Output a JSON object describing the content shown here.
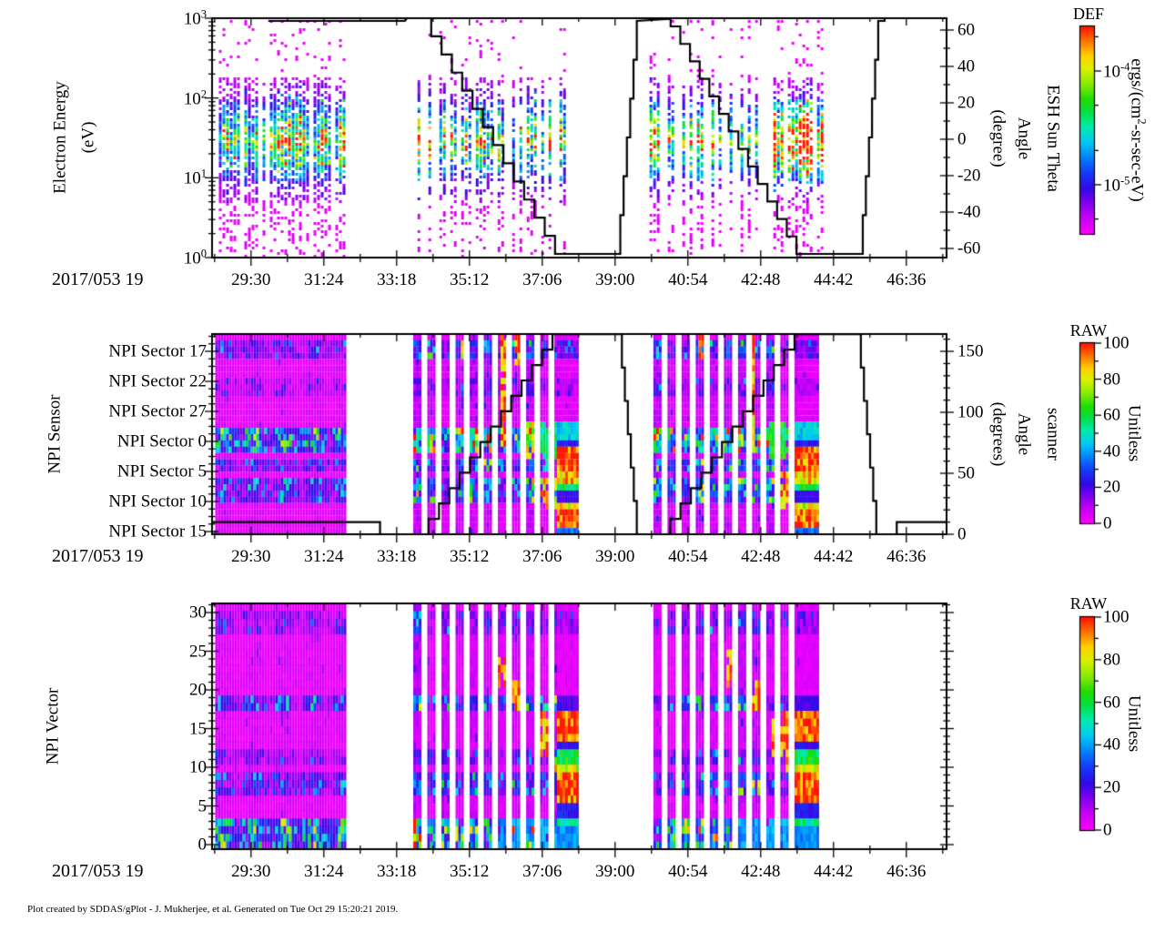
{
  "x_label": "2017/053 19",
  "footer": "Plot created by SDDAS/gPlot - J. Mukherjee, et al.  Generated on Tue Oct 29 15:20:21 2019.",
  "chart_data": [
    {
      "panel": "electron-energy-spectrogram",
      "type": "heatmap",
      "x_axis": {
        "label": "2017/053 19",
        "tick_labels": [
          "29:30",
          "31:24",
          "33:18",
          "35:12",
          "37:06",
          "39:00",
          "40:54",
          "42:48",
          "44:42",
          "46:36"
        ],
        "tick_seconds": [
          1770,
          1884,
          1998,
          2112,
          2226,
          2340,
          2454,
          2568,
          2682,
          2796
        ],
        "range_seconds": [
          1709,
          2859
        ],
        "minor_step_seconds": 57
      },
      "y_axis": {
        "title_lines": [
          "Electron Energy",
          "(eV)"
        ],
        "scale": "log10",
        "tick_base": "10",
        "tick_exponents": [
          "3",
          "2",
          "1",
          "0"
        ],
        "range_log10": [
          0,
          3
        ]
      },
      "right_axis": {
        "title_lines": [
          "ESH Sun Theta",
          "Angle",
          "(degree)"
        ],
        "tick_labels": [
          "60",
          "40",
          "20",
          "0",
          "-20",
          "-40",
          "-60"
        ],
        "tick_values": [
          60,
          40,
          20,
          0,
          -20,
          -40,
          -60
        ],
        "range": [
          -65,
          66.5
        ],
        "minor_step": 10
      },
      "colorbar": {
        "title": "DEF",
        "unit_parts": {
          "pre": "ergs/(cm",
          "sup": "2",
          "post": "-sr-sec-eV)"
        },
        "scale": "log10",
        "tick_labels": [
          {
            "base": "10",
            "exp": "-4"
          },
          {
            "base": "10",
            "exp": "-5"
          }
        ],
        "major_fracs": [
          0.215,
          0.763
        ],
        "minor_fracs": [
          0.05,
          0.38,
          0.598,
          0.928
        ]
      },
      "bursts": [
        {
          "t0": 1714,
          "t1": 1918,
          "density": 0.85
        },
        {
          "t0": 2025,
          "t1": 2282,
          "density": 0.55
        },
        {
          "t0": 2394,
          "t1": 2666,
          "density": 0.6,
          "hot_t0": 2570,
          "hot_t1": 2662
        }
      ],
      "line": {
        "name": "esh-sun-theta-angle-deg",
        "segments": [
          [
            1797,
            65,
            2011,
            65,
            0
          ],
          [
            2011,
            65,
            2014,
            66.5,
            0
          ],
          [
            2014,
            66.5,
            2036,
            66.5,
            0
          ],
          [
            2036,
            66.5,
            2246,
            -63,
            13
          ],
          [
            2246,
            -63,
            2343,
            -63,
            0
          ],
          [
            2343,
            -63,
            2374,
            65,
            6
          ],
          [
            2374,
            65,
            2420,
            66,
            0
          ],
          [
            2420,
            66,
            2427,
            62,
            1
          ],
          [
            2427,
            62,
            2624,
            -63,
            13
          ],
          [
            2624,
            -63,
            2723,
            -63,
            0
          ],
          [
            2723,
            -63,
            2752,
            65,
            6
          ],
          [
            2752,
            65,
            2762,
            66.5,
            1
          ],
          [
            2762,
            66.5,
            2859,
            66.5,
            0
          ]
        ]
      }
    },
    {
      "panel": "npi-sensor",
      "type": "heatmap",
      "y_axis": {
        "title": "NPI Sensor",
        "tick_labels": [
          "NPI Sector 17",
          "NPI Sector 22",
          "NPI Sector 27",
          "NPI Sector 0",
          "NPI Sector 5",
          "NPI Sector 10",
          "NPI Sector 15"
        ]
      },
      "right_axis": {
        "title_lines": [
          "scanner",
          "Angle",
          "(degrees)"
        ],
        "tick_labels": [
          "150",
          "100",
          "50",
          "0"
        ],
        "tick_values": [
          150,
          100,
          50,
          0
        ],
        "range": [
          0,
          164.2
        ],
        "minor_step": 10
      },
      "colorbar": {
        "title": "RAW",
        "unit": "Unitless",
        "tick_labels": [
          "100",
          "80",
          "60",
          "40",
          "20",
          "0"
        ],
        "tick_values": [
          100,
          80,
          60,
          40,
          20,
          0
        ],
        "range": [
          0,
          100
        ],
        "minor_step": 10
      },
      "bands": [
        {
          "rf": [
            0.02,
            0.14
          ],
          "base": 13,
          "speckle": 0.25
        },
        {
          "rf": [
            0.22,
            0.31
          ],
          "base": 8,
          "speckle": 0.15
        },
        {
          "rf": [
            0.46,
            0.6
          ],
          "base": 21,
          "speckle": 0.5
        },
        {
          "rf": [
            0.62,
            0.7
          ],
          "base": 13,
          "speckle": 0.3
        },
        {
          "rf": [
            0.72,
            0.83
          ],
          "base": 15,
          "speckle": 0.35
        }
      ],
      "base": {
        "base": 4,
        "speckle": 0.06
      },
      "regions": [
        {
          "t0": 1714,
          "t1": 1918,
          "style": "block",
          "mod": true
        },
        {
          "t0": 2024,
          "t1": 2249,
          "style": "stripes",
          "enh": [
            {
              "tf": [
                0.6,
                0.64
              ],
              "rf": [
                0.0,
                0.55
              ],
              "v": 96
            },
            {
              "tf": [
                0.7,
                0.76
              ],
              "rf": [
                0.0,
                0.15
              ],
              "v": 96
            },
            {
              "tf": [
                0.33,
                0.37
              ],
              "rf": [
                0.02,
                0.14
              ],
              "v": 88
            },
            {
              "tf": [
                0.76,
                0.86
              ],
              "rf": [
                0.44,
                0.62
              ],
              "v": 80
            },
            {
              "tf": [
                0.88,
                1.0
              ],
              "rf": [
                0.72,
                0.88
              ],
              "v": 90
            },
            {
              "tf": [
                0.86,
                1.0
              ],
              "rf": [
                0.44,
                0.62
              ],
              "v": 55
            }
          ]
        },
        {
          "t0": 2249,
          "t1": 2279,
          "style": "block",
          "rows": [
            {
              "rf": [
                0.44,
                0.52
              ],
              "v": 45
            },
            {
              "rf": [
                0.52,
                0.57
              ],
              "v": 25
            },
            {
              "rf": [
                0.57,
                0.7
              ],
              "v": 97
            },
            {
              "rf": [
                0.7,
                0.745
              ],
              "v": 85
            },
            {
              "rf": [
                0.745,
                0.79
              ],
              "v": 60
            },
            {
              "rf": [
                0.79,
                0.83
              ],
              "v": 22
            },
            {
              "rf": [
                0.83,
                0.87
              ],
              "v": 80
            },
            {
              "rf": [
                0.87,
                0.97
              ],
              "v": 97
            },
            {
              "rf": [
                0.97,
                1.0
              ],
              "v": 35
            }
          ]
        },
        {
          "t0": 2400,
          "t1": 2621,
          "style": "stripes",
          "enh": [
            {
              "tf": [
                0.3,
                0.36
              ],
              "rf": [
                0.0,
                0.14
              ],
              "v": 96
            },
            {
              "tf": [
                0.64,
                0.7
              ],
              "rf": [
                0.0,
                0.6
              ],
              "v": 93
            },
            {
              "tf": [
                0.55,
                0.62
              ],
              "rf": [
                0.44,
                0.62
              ],
              "v": 96
            },
            {
              "tf": [
                0.85,
                1.0
              ],
              "rf": [
                0.7,
                0.88
              ],
              "v": 92
            },
            {
              "tf": [
                0.8,
                1.0
              ],
              "rf": [
                0.44,
                0.62
              ],
              "v": 60
            }
          ]
        },
        {
          "t0": 2621,
          "t1": 2656,
          "style": "block",
          "rows": [
            {
              "rf": [
                0.44,
                0.52
              ],
              "v": 45
            },
            {
              "rf": [
                0.52,
                0.57
              ],
              "v": 25
            },
            {
              "rf": [
                0.57,
                0.7
              ],
              "v": 97
            },
            {
              "rf": [
                0.7,
                0.745
              ],
              "v": 85
            },
            {
              "rf": [
                0.745,
                0.79
              ],
              "v": 60
            },
            {
              "rf": [
                0.79,
                0.83
              ],
              "v": 22
            },
            {
              "rf": [
                0.83,
                0.87
              ],
              "v": 80
            },
            {
              "rf": [
                0.87,
                0.97
              ],
              "v": 97
            },
            {
              "rf": [
                0.97,
                1.0
              ],
              "v": 35
            }
          ]
        }
      ],
      "line": {
        "name": "scanner-angle-deg",
        "segments": [
          [
            1709,
            10,
            1968,
            10,
            0
          ],
          [
            1968,
            10,
            1972,
            0,
            1
          ],
          [
            1972,
            0,
            2032,
            0,
            0
          ],
          [
            2032,
            0,
            2242,
            164,
            13
          ],
          [
            2242,
            164,
            2346,
            164,
            0
          ],
          [
            2346,
            164,
            2374,
            0,
            6
          ],
          [
            2374,
            0,
            2410,
            0,
            0
          ],
          [
            2410,
            0,
            2621,
            164,
            13
          ],
          [
            2621,
            164,
            2720,
            164,
            0
          ],
          [
            2720,
            164,
            2749,
            0,
            6
          ],
          [
            2749,
            0,
            2779,
            0,
            0
          ],
          [
            2779,
            0,
            2781,
            10,
            1
          ],
          [
            2781,
            10,
            2859,
            10,
            0
          ]
        ]
      }
    },
    {
      "panel": "npi-vector",
      "type": "heatmap",
      "y_axis": {
        "title": "NPI Vector",
        "tick_labels": [
          "30",
          "25",
          "20",
          "15",
          "10",
          "5",
          "0"
        ],
        "tick_values": [
          30,
          25,
          20,
          15,
          10,
          5,
          0
        ],
        "range": [
          -0.6,
          31.2
        ],
        "minor_step": 1
      },
      "colorbar": {
        "title": "RAW",
        "unit": "Unitless",
        "tick_labels": [
          "100",
          "80",
          "60",
          "40",
          "20",
          "0"
        ],
        "tick_values": [
          100,
          80,
          60,
          40,
          20,
          0
        ],
        "range": [
          0,
          100
        ],
        "minor_step": 10
      },
      "bands": [
        {
          "rf": [
            0.03,
            0.14
          ],
          "base": 10,
          "speckle": 0.2
        },
        {
          "rf": [
            0.36,
            0.45
          ],
          "base": 15,
          "speckle": 0.35
        },
        {
          "rf": [
            0.58,
            0.66
          ],
          "base": 10,
          "speckle": 0.2
        },
        {
          "rf": [
            0.68,
            0.79
          ],
          "base": 13,
          "speckle": 0.3
        },
        {
          "rf": [
            0.87,
            1.0
          ],
          "base": 22,
          "speckle": 0.5
        }
      ],
      "base": {
        "base": 4,
        "speckle": 0.06
      },
      "regions": [
        {
          "t0": 1714,
          "t1": 1918,
          "style": "block",
          "mod": true
        },
        {
          "t0": 2024,
          "t1": 2249,
          "style": "stripes",
          "enh": [
            {
              "tf": [
                0.56,
                0.63
              ],
              "rf": [
                0.18,
                0.34
              ],
              "v": 96
            },
            {
              "tf": [
                0.66,
                0.73
              ],
              "rf": [
                0.3,
                0.43
              ],
              "v": 96
            },
            {
              "tf": [
                0.84,
                0.95
              ],
              "rf": [
                0.45,
                0.62
              ],
              "v": 94
            },
            {
              "tf": [
                0.93,
                1.0
              ],
              "rf": [
                0.6,
                0.7
              ],
              "v": 85
            },
            {
              "tf": [
                0.55,
                1.0
              ],
              "rf": [
                0.86,
                1.0
              ],
              "v": 40
            }
          ]
        },
        {
          "t0": 2249,
          "t1": 2279,
          "style": "block",
          "rows": [
            {
              "rf": [
                0.36,
                0.425
              ],
              "v": 20
            },
            {
              "rf": [
                0.425,
                0.555
              ],
              "v": 97
            },
            {
              "rf": [
                0.555,
                0.6
              ],
              "v": 22
            },
            {
              "rf": [
                0.6,
                0.655
              ],
              "v": 60
            },
            {
              "rf": [
                0.655,
                0.7
              ],
              "v": 82
            },
            {
              "rf": [
                0.7,
                0.82
              ],
              "v": 97
            },
            {
              "rf": [
                0.82,
                0.87
              ],
              "v": 25
            },
            {
              "rf": [
                0.87,
                0.92
              ],
              "v": 55
            },
            {
              "rf": [
                0.92,
                1.0
              ],
              "v": 38
            }
          ]
        },
        {
          "t0": 2400,
          "t1": 2621,
          "style": "stripes",
          "enh": [
            {
              "tf": [
                0.5,
                0.58
              ],
              "rf": [
                0.18,
                0.34
              ],
              "v": 96
            },
            {
              "tf": [
                0.66,
                0.74
              ],
              "rf": [
                0.3,
                0.43
              ],
              "v": 96
            },
            {
              "tf": [
                0.82,
                0.94
              ],
              "rf": [
                0.45,
                0.62
              ],
              "v": 94
            },
            {
              "tf": [
                0.92,
                1.0
              ],
              "rf": [
                0.6,
                0.7
              ],
              "v": 85
            },
            {
              "tf": [
                0.55,
                1.0
              ],
              "rf": [
                0.86,
                1.0
              ],
              "v": 40
            }
          ]
        },
        {
          "t0": 2621,
          "t1": 2656,
          "style": "block",
          "rows": [
            {
              "rf": [
                0.36,
                0.425
              ],
              "v": 20
            },
            {
              "rf": [
                0.425,
                0.555
              ],
              "v": 97
            },
            {
              "rf": [
                0.555,
                0.6
              ],
              "v": 22
            },
            {
              "rf": [
                0.6,
                0.655
              ],
              "v": 60
            },
            {
              "rf": [
                0.655,
                0.7
              ],
              "v": 82
            },
            {
              "rf": [
                0.7,
                0.82
              ],
              "v": 97
            },
            {
              "rf": [
                0.82,
                0.87
              ],
              "v": 25
            },
            {
              "rf": [
                0.87,
                0.92
              ],
              "v": 55
            },
            {
              "rf": [
                0.92,
                1.0
              ],
              "v": 38
            }
          ]
        }
      ]
    }
  ],
  "colors": {
    "scale_low": "#FF00FF",
    "scale_mid": "#00E060",
    "scale_high": "#FF1400",
    "line": "#000000",
    "frame": "#000000"
  }
}
